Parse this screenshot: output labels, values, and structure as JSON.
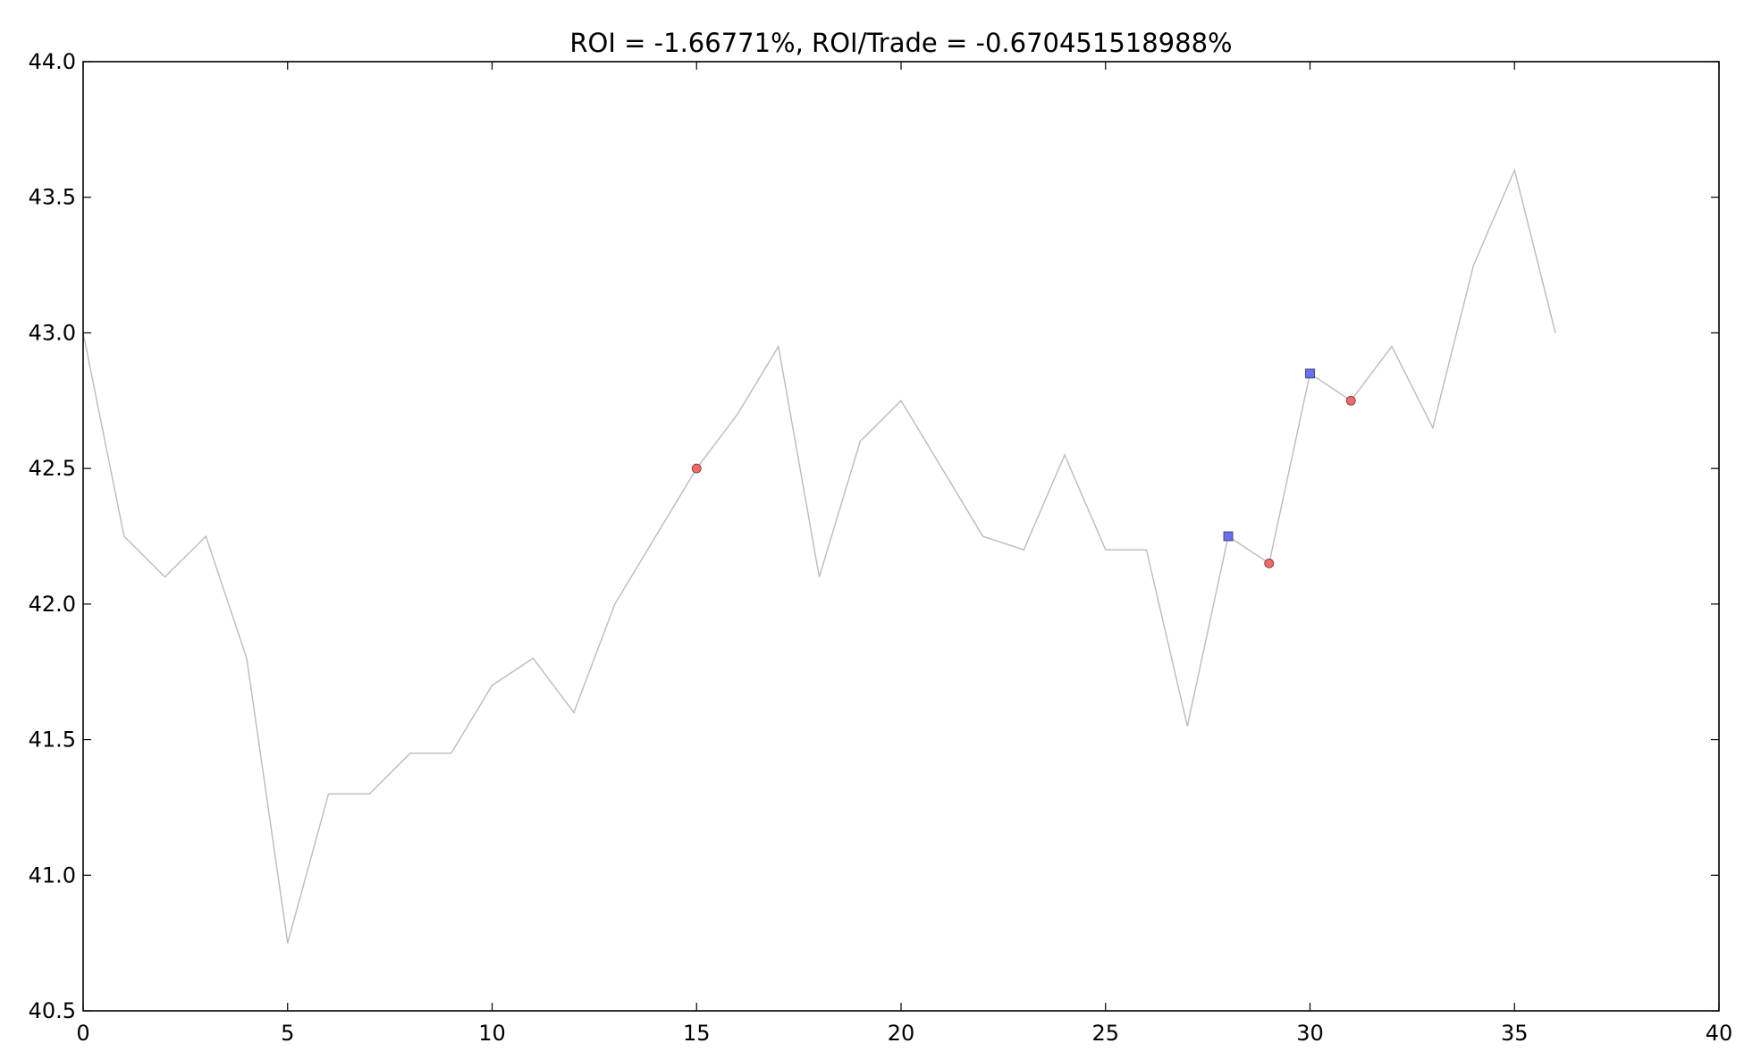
{
  "chart_data": {
    "type": "line",
    "title": "ROI = -1.66771%, ROI/Trade = -0.670451518988%",
    "xlabel": "",
    "ylabel": "",
    "xlim": [
      0,
      40
    ],
    "ylim": [
      40.5,
      44.0
    ],
    "grid": false,
    "x_ticks": [
      0,
      5,
      10,
      15,
      20,
      25,
      30,
      35,
      40
    ],
    "y_ticks": [
      40.5,
      41.0,
      41.5,
      42.0,
      42.5,
      43.0,
      43.5,
      44.0
    ],
    "x_tick_labels": [
      "0",
      "5",
      "10",
      "15",
      "20",
      "25",
      "30",
      "35",
      "40"
    ],
    "y_tick_labels": [
      "40.5",
      "41.0",
      "41.5",
      "42.0",
      "42.5",
      "43.0",
      "43.5",
      "44.0"
    ],
    "series": [
      {
        "x": [
          0,
          1,
          2,
          3,
          4,
          5,
          6,
          7,
          8,
          9,
          10,
          11,
          12,
          13,
          14,
          15,
          16,
          17,
          18,
          19,
          20,
          21,
          22,
          23,
          24,
          25,
          26,
          27,
          28,
          29,
          30,
          31,
          32,
          33,
          34,
          35,
          36
        ],
        "y": [
          43.0,
          42.25,
          42.1,
          42.25,
          41.8,
          40.75,
          41.3,
          41.3,
          41.45,
          41.45,
          41.7,
          41.8,
          41.6,
          42.0,
          42.25,
          42.5,
          42.7,
          42.95,
          42.1,
          42.6,
          42.75,
          42.5,
          42.25,
          42.2,
          42.55,
          42.2,
          42.2,
          41.55,
          42.25,
          42.15,
          42.85,
          42.75,
          42.95,
          42.65,
          43.25,
          43.6,
          43.0
        ],
        "color": "#bbbbbb"
      }
    ],
    "markers": [
      {
        "shape": "square",
        "color": "#6a6ef0",
        "points": [
          [
            28,
            42.25
          ],
          [
            30,
            42.85
          ]
        ]
      },
      {
        "shape": "circle",
        "color": "#f06a6a",
        "points": [
          [
            15,
            42.5
          ],
          [
            29,
            42.15
          ],
          [
            31,
            42.75
          ]
        ]
      }
    ]
  }
}
